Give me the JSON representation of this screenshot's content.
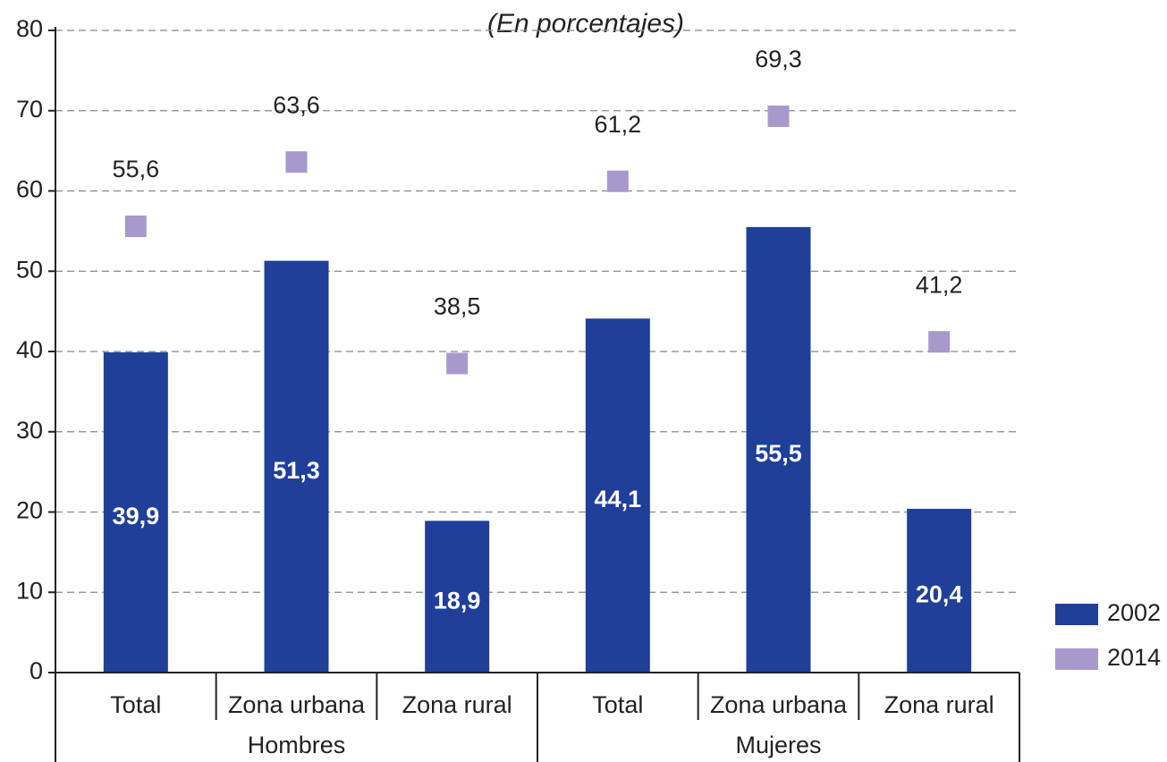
{
  "chart_data": {
    "type": "bar",
    "subtitle": "(En porcentajes)",
    "categories": [
      "Total",
      "Zona urbana",
      "Zona rural",
      "Total",
      "Zona urbana",
      "Zona rural"
    ],
    "groups": [
      "Hombres",
      "Mujeres"
    ],
    "series": [
      {
        "name": "2002",
        "color": "#1f3f99",
        "values": [
          39.9,
          51.3,
          18.9,
          44.1,
          55.5,
          20.4
        ],
        "value_labels": [
          "39,9",
          "51,3",
          "18,9",
          "44,1",
          "55,5",
          "20,4"
        ]
      },
      {
        "name": "2014",
        "color": "#a899cc",
        "values": [
          55.6,
          63.6,
          38.5,
          61.2,
          69.3,
          41.2
        ],
        "value_labels": [
          "55,6",
          "63,6",
          "38,5",
          "61,2",
          "69,3",
          "41,2"
        ]
      }
    ],
    "ylim": [
      0,
      80
    ],
    "yticks": [
      0,
      10,
      20,
      30,
      40,
      50,
      60,
      70,
      80
    ],
    "grid": true,
    "legend": "right"
  }
}
